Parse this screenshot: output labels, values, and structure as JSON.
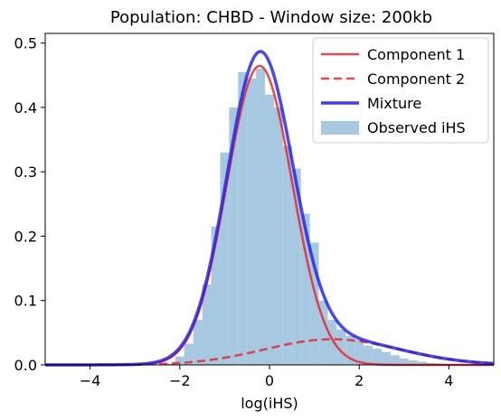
{
  "chart_data": {
    "type": "bar",
    "title": "Population: CHBD - Window size: 200kb",
    "xlabel": "log(iHS)",
    "ylabel": "",
    "xlim": [
      -5,
      5
    ],
    "ylim": [
      0,
      0.515
    ],
    "grid": false,
    "legend_position": "top-right",
    "x_ticks": [
      "−4",
      "−2",
      "0",
      "2",
      "4"
    ],
    "x_tick_values": [
      -4,
      -2,
      0,
      2,
      4
    ],
    "y_ticks": [
      "0.0",
      "0.1",
      "0.2",
      "0.3",
      "0.4",
      "0.5"
    ],
    "y_tick_values": [
      0,
      0.1,
      0.2,
      0.3,
      0.4,
      0.5
    ],
    "series": [
      {
        "name": "Component 1",
        "kind": "line",
        "style": "solid",
        "color": "#e8272f"
      },
      {
        "name": "Component 2",
        "kind": "line",
        "style": "dashed",
        "color": "#e8272f"
      },
      {
        "name": "Mixture",
        "kind": "line",
        "style": "solid",
        "color": "#1b1bf0"
      },
      {
        "name": "Observed iHS",
        "kind": "histogram",
        "color": "#a6c8e1"
      }
    ],
    "components": {
      "component1": {
        "weight": 0.85,
        "mean": -0.22,
        "sd": 0.73
      },
      "component2": {
        "weight": 0.15,
        "mean": 1.4,
        "sd": 1.5
      }
    },
    "histogram": {
      "bin_edges": [
        -2.3,
        -2.1,
        -1.9,
        -1.7,
        -1.5,
        -1.3,
        -1.1,
        -0.9,
        -0.7,
        -0.5,
        -0.3,
        -0.1,
        0.1,
        0.3,
        0.5,
        0.7,
        0.9,
        1.1,
        1.3,
        1.5,
        1.7,
        1.9,
        2.1,
        2.3,
        2.5,
        2.7,
        2.9,
        3.1,
        3.3,
        3.5,
        3.7,
        3.9
      ],
      "values": [
        0.002,
        0.013,
        0.033,
        0.07,
        0.125,
        0.215,
        0.33,
        0.4,
        0.455,
        0.445,
        0.46,
        0.42,
        0.4,
        0.34,
        0.305,
        0.235,
        0.19,
        0.1,
        0.07,
        0.055,
        0.045,
        0.04,
        0.03,
        0.025,
        0.02,
        0.015,
        0.01,
        0.007,
        0.005,
        0.003,
        0.002
      ]
    }
  }
}
